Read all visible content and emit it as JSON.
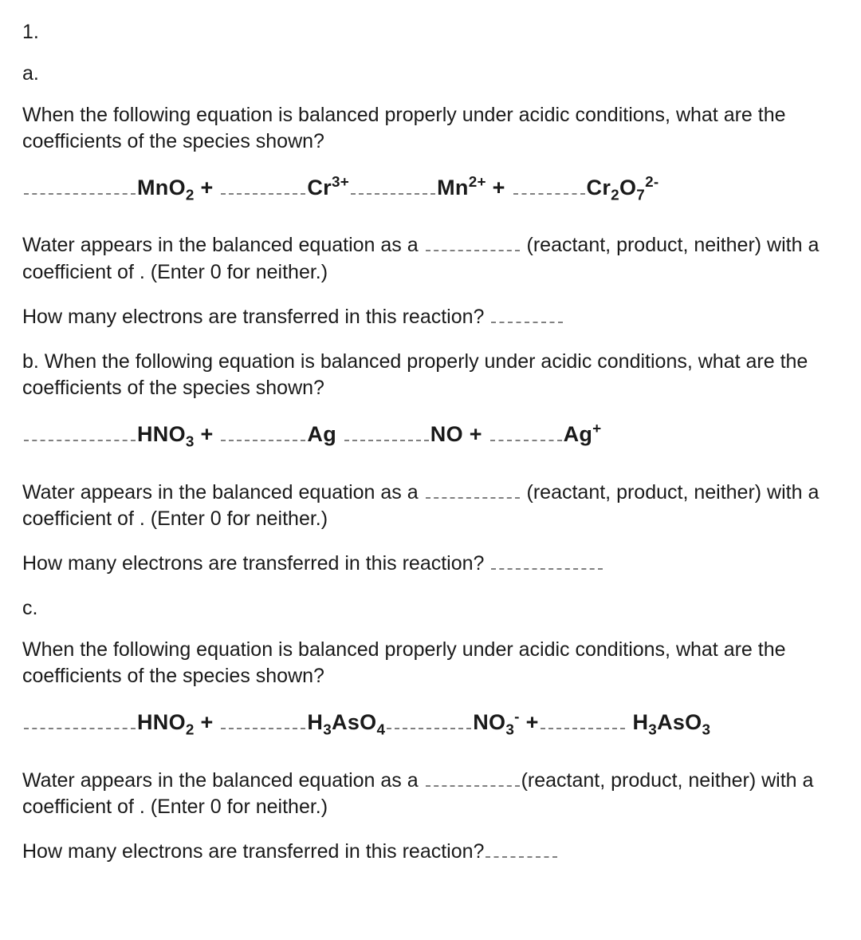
{
  "problem_number": "1.",
  "parts": {
    "a": {
      "label": "a.",
      "question": "When the following equation is balanced properly under acidic conditions, what are the coefficients of the species shown?",
      "eq": {
        "s1": "MnO",
        "s1_sub": "2",
        "plus1": " + ",
        "s2": "Cr",
        "s2_sup": "3+",
        "s3": "Mn",
        "s3_sup": "2+",
        "plus2": " + ",
        "s4": "Cr",
        "s4_sub": "2",
        "s4_mid": "O",
        "s4_sub2": "7",
        "s4_sup": "2-"
      },
      "water_line_a": "Water appears in the balanced equation as a ",
      "water_line_b": " (reactant, product, neither) with a coefficient of . (Enter 0 for neither.)",
      "elec_line_a": "How many electrons are transferred in this reaction? "
    },
    "b": {
      "label": "b. ",
      "question": "When the following equation is balanced properly under acidic conditions, what are the coefficients of the species shown?",
      "eq": {
        "s1": "HNO",
        "s1_sub": "3",
        "plus1": " + ",
        "s2": "Ag",
        "s3": "NO",
        "plus2": " + ",
        "s4": "Ag",
        "s4_sup": "+"
      },
      "water_line_a": "Water appears in the balanced equation as a ",
      "water_line_b": " (reactant, product, neither) with a coefficient of . (Enter 0 for neither.)",
      "elec_line_a": "How many electrons are transferred in this reaction? "
    },
    "c": {
      "label": "c.",
      "question": "When the following equation is balanced properly under acidic conditions, what are the coefficients of the species shown?",
      "eq": {
        "s1": "HNO",
        "s1_sub": "2",
        "plus1": " + ",
        "s2": "H",
        "s2_sub": "3",
        "s2_mid": "AsO",
        "s2_sub2": "4",
        "s3": "NO",
        "s3_sub": "3",
        "s3_sup": "-",
        "plus2": " +",
        "s4": " H",
        "s4_sub": "3",
        "s4_mid": "AsO",
        "s4_sub2": "3"
      },
      "water_line_a": "Water appears in the balanced equation as a ",
      "water_line_b": "(reactant, product, neither) with a coefficient of . (Enter 0 for neither.)",
      "elec_line_a": "How many electrons are transferred in this reaction?"
    }
  }
}
